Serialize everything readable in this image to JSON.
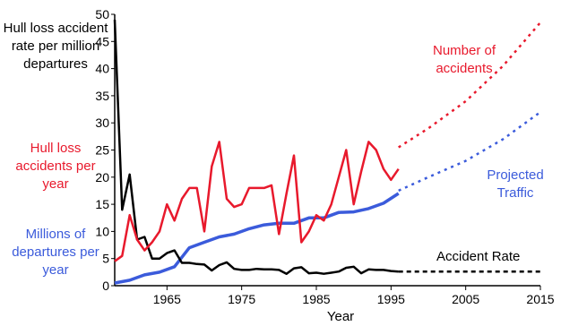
{
  "chart_data": {
    "type": "line",
    "xlabel": "Year",
    "xlim": [
      1958,
      2015
    ],
    "ylim": [
      0,
      50
    ],
    "x_ticks": [
      1965,
      1975,
      1985,
      1995,
      2005,
      2015
    ],
    "y_ticks": [
      0,
      5,
      10,
      15,
      20,
      25,
      30,
      35,
      40,
      45,
      50
    ],
    "grid": false,
    "colors": {
      "rate": "#000000",
      "accidents": "#e8192c",
      "traffic": "#3b5bdb"
    },
    "left_labels": {
      "rate": "Hull loss accident rate per million departures",
      "accidents": "Hull loss accidents per year",
      "traffic": "Millions of departures per year"
    },
    "annotations": {
      "accidents_projection": "Number of accidents",
      "traffic_projection": "Projected Traffic",
      "rate_projection": "Accident Rate"
    },
    "series": [
      {
        "key": "rate",
        "x": [
          1958,
          1959,
          1960,
          1961,
          1962,
          1963,
          1964,
          1965,
          1966,
          1967,
          1968,
          1969,
          1970,
          1971,
          1972,
          1973,
          1974,
          1975,
          1976,
          1977,
          1978,
          1979,
          1980,
          1981,
          1982,
          1983,
          1984,
          1985,
          1986,
          1987,
          1988,
          1989,
          1990,
          1991,
          1992,
          1993,
          1994,
          1995,
          1996
        ],
        "values": [
          49,
          14,
          20.5,
          8.5,
          9,
          5,
          5,
          6,
          6.5,
          4.2,
          4.2,
          4,
          3.9,
          2.8,
          3.8,
          4.3,
          3.1,
          2.9,
          2.9,
          3.1,
          3,
          3,
          2.9,
          2.2,
          3.2,
          3.4,
          2.3,
          2.4,
          2.2,
          2.4,
          2.6,
          3.3,
          3.5,
          2.3,
          3,
          2.9,
          2.9,
          2.7,
          2.6
        ]
      },
      {
        "key": "rate_projection",
        "x": [
          1996,
          2015
        ],
        "values": [
          2.6,
          2.6
        ]
      },
      {
        "key": "accidents",
        "x": [
          1958,
          1959,
          1960,
          1961,
          1962,
          1963,
          1964,
          1965,
          1966,
          1967,
          1968,
          1969,
          1970,
          1971,
          1972,
          1973,
          1974,
          1975,
          1976,
          1977,
          1978,
          1979,
          1980,
          1981,
          1982,
          1983,
          1984,
          1985,
          1986,
          1987,
          1988,
          1989,
          1990,
          1991,
          1992,
          1993,
          1994,
          1995,
          1996
        ],
        "values": [
          4.5,
          5.5,
          13,
          8.5,
          6.5,
          8,
          10,
          15,
          12,
          16,
          18,
          18,
          10,
          22,
          26.5,
          16,
          14.5,
          15,
          18,
          18,
          18,
          18.5,
          9.5,
          17,
          24,
          8,
          10,
          13,
          12,
          15,
          20,
          25,
          15,
          21,
          26.5,
          25,
          21.5,
          19.5,
          21.5
        ]
      },
      {
        "key": "accidents_projection",
        "x": [
          1996,
          2000,
          2005,
          2010,
          2015
        ],
        "values": [
          25.5,
          29,
          34,
          40.5,
          48.5
        ]
      },
      {
        "key": "traffic",
        "x": [
          1958,
          1960,
          1962,
          1964,
          1966,
          1968,
          1970,
          1972,
          1974,
          1976,
          1978,
          1980,
          1982,
          1984,
          1986,
          1988,
          1990,
          1992,
          1994,
          1996
        ],
        "values": [
          0.5,
          1,
          2,
          2.5,
          3.5,
          7,
          8,
          9,
          9.5,
          10.5,
          11.2,
          11.5,
          11.5,
          12.5,
          12.5,
          13.5,
          13.6,
          14.2,
          15.2,
          17
        ]
      },
      {
        "key": "traffic_projection",
        "x": [
          1996,
          2000,
          2005,
          2010,
          2015
        ],
        "values": [
          17.5,
          20,
          23,
          27,
          32
        ]
      }
    ]
  }
}
